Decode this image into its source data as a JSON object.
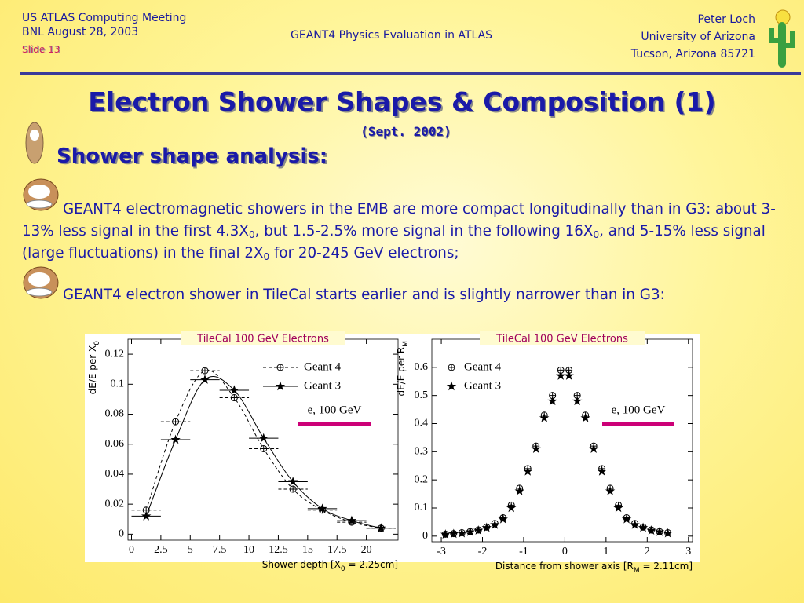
{
  "header": {
    "left": [
      "US ATLAS Computing Meeting",
      "BNL August 28, 2003"
    ],
    "slide": "Slide 13",
    "center": "GEANT4 Physics Evaluation in ATLAS",
    "right": [
      "Peter Loch",
      "University of Arizona",
      "Tucson, Arizona 85721"
    ]
  },
  "title": "Electron Shower Shapes & Composition (1)",
  "subtitle": "(Sept. 2002)",
  "heading": "Shower shape analysis:",
  "bullets": [
    [
      "GEANT4 electromagnetic showers in the EMB are more compact longitudinally than in G3: about 3-13% less signal in the first 4.3X",
      "0",
      ", but 1.5-2.5% more signal in the following 16X",
      "0",
      ", and 5-15% less signal (large fluctuations) in the final 2X",
      "0",
      " for 20-245 GeV electrons;"
    ],
    [
      "GEANT4 electron shower in TileCal starts earlier and is slightly narrower than in G3:"
    ]
  ],
  "chart_data": [
    {
      "type": "scatter",
      "title": "TileCal 100 GeV Electrons",
      "x_label": [
        "Shower depth [X",
        "0",
        " = 2.25cm]"
      ],
      "y_label": [
        "dE/E per X",
        "0"
      ],
      "annotation": "e, 100 GeV",
      "annotation_color": "#cc0077",
      "xlim": [
        -0.3,
        22.7
      ],
      "ylim": [
        -0.004,
        0.13
      ],
      "xticks": [
        0,
        2.5,
        5,
        7.5,
        10,
        12.5,
        15,
        17.5,
        20
      ],
      "yticks": [
        0,
        0.02,
        0.04,
        0.06,
        0.08,
        0.1,
        0.12
      ],
      "legend": "upper right",
      "series": [
        {
          "name": "Geant 4",
          "marker": "circle",
          "line": "dashed",
          "color": "#000000",
          "x": [
            1.25,
            3.75,
            6.25,
            8.75,
            11.25,
            13.75,
            16.25,
            18.75,
            21.25
          ],
          "values": [
            0.016,
            0.075,
            0.109,
            0.091,
            0.057,
            0.03,
            0.016,
            0.008,
            0.004
          ],
          "xerr": 1.25
        },
        {
          "name": "Geant 3",
          "marker": "star",
          "line": "solid",
          "color": "#000000",
          "x": [
            1.25,
            3.75,
            6.25,
            8.75,
            11.25,
            13.75,
            16.25,
            18.75,
            21.25
          ],
          "values": [
            0.012,
            0.063,
            0.103,
            0.096,
            0.064,
            0.035,
            0.017,
            0.009,
            0.004
          ],
          "xerr": 1.25
        }
      ]
    },
    {
      "type": "scatter",
      "title": "TileCal 100 GeV Electrons",
      "x_label": [
        "Distance from shower axis [R",
        "M",
        " = 2.11cm]"
      ],
      "y_label": [
        "dE/E per R",
        "M"
      ],
      "annotation": "e, 100 GeV",
      "annotation_color": "#cc0077",
      "xlim": [
        -3.23,
        3.1
      ],
      "ylim": [
        -0.02,
        0.7
      ],
      "xticks": [
        -3,
        -2,
        -1,
        0,
        1,
        2,
        3
      ],
      "yticks": [
        0,
        0.1,
        0.2,
        0.3,
        0.4,
        0.5,
        0.6
      ],
      "legend": "upper left",
      "series": [
        {
          "name": "Geant 4",
          "marker": "circle",
          "line": "none",
          "color": "#000000",
          "x": [
            -2.9,
            -2.7,
            -2.5,
            -2.3,
            -2.1,
            -1.9,
            -1.7,
            -1.5,
            -1.3,
            -1.1,
            -0.9,
            -0.7,
            -0.5,
            -0.3,
            -0.1,
            0.1,
            0.3,
            0.5,
            0.7,
            0.9,
            1.1,
            1.3,
            1.5,
            1.7,
            1.9,
            2.1,
            2.3,
            2.5
          ],
          "values": [
            0.007,
            0.009,
            0.012,
            0.016,
            0.022,
            0.032,
            0.045,
            0.065,
            0.11,
            0.17,
            0.24,
            0.32,
            0.43,
            0.5,
            0.59,
            0.59,
            0.5,
            0.43,
            0.32,
            0.24,
            0.17,
            0.11,
            0.065,
            0.045,
            0.032,
            0.022,
            0.016,
            0.012
          ]
        },
        {
          "name": "Geant 3",
          "marker": "star",
          "line": "none",
          "color": "#000000",
          "x": [
            -2.9,
            -2.7,
            -2.5,
            -2.3,
            -2.1,
            -1.9,
            -1.7,
            -1.5,
            -1.3,
            -1.1,
            -0.9,
            -0.7,
            -0.5,
            -0.3,
            -0.1,
            0.1,
            0.3,
            0.5,
            0.7,
            0.9,
            1.1,
            1.3,
            1.5,
            1.7,
            1.9,
            2.1,
            2.3,
            2.5
          ],
          "values": [
            0.006,
            0.008,
            0.01,
            0.015,
            0.02,
            0.03,
            0.04,
            0.06,
            0.1,
            0.16,
            0.23,
            0.31,
            0.42,
            0.48,
            0.57,
            0.57,
            0.48,
            0.42,
            0.31,
            0.23,
            0.16,
            0.1,
            0.06,
            0.04,
            0.03,
            0.02,
            0.015,
            0.01
          ]
        }
      ]
    }
  ]
}
